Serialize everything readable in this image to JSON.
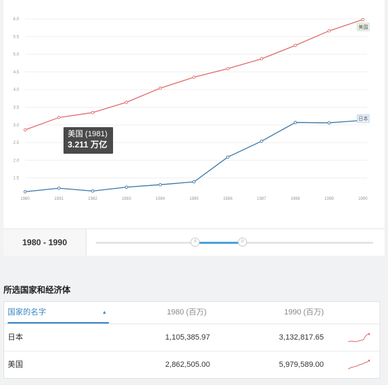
{
  "chart_data": {
    "type": "line",
    "x": [
      1980,
      1981,
      1982,
      1983,
      1984,
      1985,
      1986,
      1987,
      1988,
      1989,
      1990
    ],
    "x_tick_labels": [
      "1980",
      "1981",
      "1982",
      "1983",
      "1984",
      "1985",
      "1986",
      "1987",
      "1988",
      "1989",
      "1990"
    ],
    "y_tick_labels": [
      "1.5",
      "2.0",
      "2.5",
      "3.0",
      "3.5",
      "4.0",
      "4.5",
      "5.0",
      "5.5",
      "6.0"
    ],
    "ylim": [
      1.0,
      6.0
    ],
    "grid": "horizontal",
    "series": [
      {
        "name": "美国",
        "color": "#e06c6c",
        "values": [
          2.86,
          3.21,
          3.35,
          3.64,
          4.04,
          4.35,
          4.59,
          4.87,
          5.25,
          5.66,
          5.98
        ]
      },
      {
        "name": "日本",
        "color": "#3b78a8",
        "values": [
          1.11,
          1.21,
          1.13,
          1.24,
          1.31,
          1.39,
          2.09,
          2.54,
          3.07,
          3.06,
          3.13
        ]
      }
    ]
  },
  "tooltip": {
    "title": "美国 (1981)",
    "value": "3.211 万亿"
  },
  "range": {
    "label": "1980 - 1990",
    "start_fraction": 0.36,
    "end_fraction": 0.53,
    "handle_glyph": "II"
  },
  "section_title": "所选国家和经济体",
  "table": {
    "headers": {
      "name": "国家的名字",
      "sort_glyph": "▲",
      "col_1980": "1980 (百万)",
      "col_1990": "1990 (百万)"
    },
    "rows": [
      {
        "name": "日本",
        "v1980": "1,105,385.97",
        "v1990": "3,132,817.65"
      },
      {
        "name": "美国",
        "v1980": "2,862,505.00",
        "v1990": "5,979,589.00"
      }
    ]
  },
  "colors": {
    "us_line": "#e06c6c",
    "jp_line": "#3b78a8",
    "accent": "#3a86c8",
    "spark": "#e06c6c"
  }
}
